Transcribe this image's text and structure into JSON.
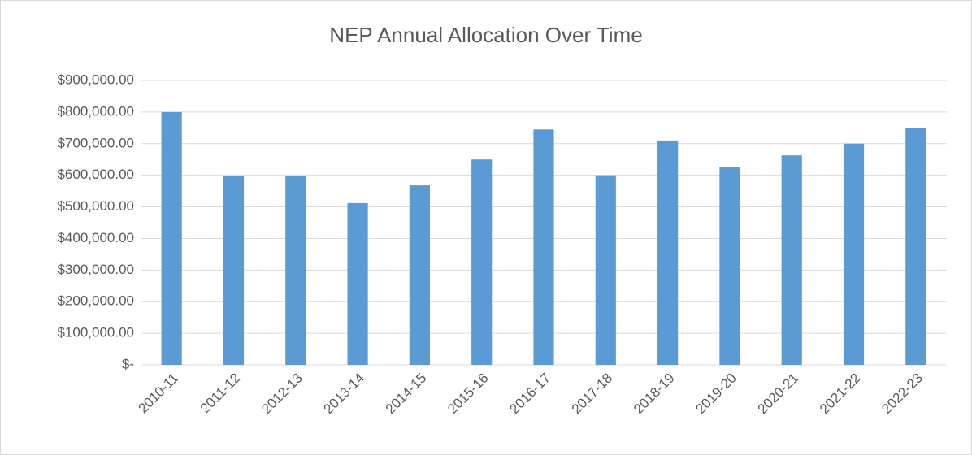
{
  "chart_data": {
    "type": "bar",
    "title": "NEP Annual Allocation Over Time",
    "categories": [
      "2010-11",
      "2011-12",
      "2012-13",
      "2013-14",
      "2014-15",
      "2015-16",
      "2016-17",
      "2017-18",
      "2018-19",
      "2019-20",
      "2020-21",
      "2021-22",
      "2022-23"
    ],
    "values": [
      800000,
      598000,
      598000,
      512000,
      568000,
      650000,
      745000,
      600000,
      710000,
      625000,
      663000,
      700000,
      750000
    ],
    "color": "#5b9bd5",
    "ylim": [
      0,
      900000
    ],
    "yticks": [
      {
        "value": 0,
        "label": "$-"
      },
      {
        "value": 100000,
        "label": "$100,000.00"
      },
      {
        "value": 200000,
        "label": "$200,000.00"
      },
      {
        "value": 300000,
        "label": "$300,000.00"
      },
      {
        "value": 400000,
        "label": "$400,000.00"
      },
      {
        "value": 500000,
        "label": "$500,000.00"
      },
      {
        "value": 600000,
        "label": "$600,000.00"
      },
      {
        "value": 700000,
        "label": "$700,000.00"
      },
      {
        "value": 800000,
        "label": "$800,000.00"
      },
      {
        "value": 900000,
        "label": "$900,000.00"
      }
    ],
    "grid": true
  }
}
